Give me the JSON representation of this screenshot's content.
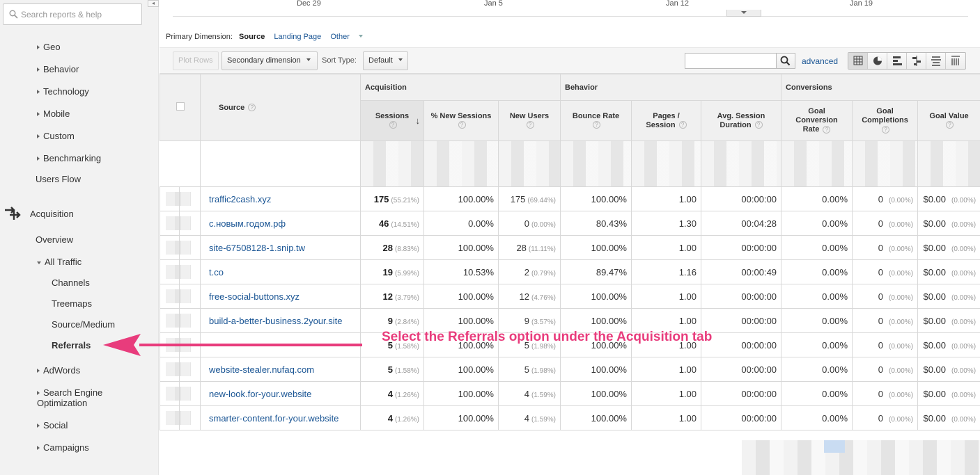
{
  "sidebar": {
    "search_placeholder": "Search reports & help",
    "audience_items": [
      "Geo",
      "Behavior",
      "Technology",
      "Mobile",
      "Custom",
      "Benchmarking"
    ],
    "users_flow": "Users Flow",
    "acquisition": "Acquisition",
    "overview": "Overview",
    "all_traffic": "All Traffic",
    "all_traffic_items": [
      "Channels",
      "Treemaps",
      "Source/Medium",
      "Referrals"
    ],
    "selected_item": "Referrals",
    "other_items": [
      "AdWords",
      "Search Engine Optimization",
      "Social",
      "Campaigns"
    ]
  },
  "timeline": {
    "labels": [
      "Dec 29",
      "Jan 5",
      "Jan 12",
      "Jan 19"
    ]
  },
  "primary_dimension": {
    "label": "Primary Dimension:",
    "active": "Source",
    "landing_page": "Landing Page",
    "other": "Other"
  },
  "toolbar": {
    "plot_rows": "Plot Rows",
    "secondary_dimension": "Secondary dimension",
    "sort_type_label": "Sort Type:",
    "sort_type_value": "Default",
    "advanced": "advanced",
    "view_icons": [
      "grid-view-icon",
      "pie-view-icon",
      "bar-view-icon",
      "compare-view-icon",
      "term-cloud-view-icon",
      "pivot-view-icon"
    ]
  },
  "table": {
    "source_header": "Source",
    "groups": {
      "acquisition": "Acquisition",
      "behavior": "Behavior",
      "conversions": "Conversions"
    },
    "columns": {
      "sessions": "Sessions",
      "new_sessions": "% New Sessions",
      "new_users": "New Users",
      "bounce_rate": "Bounce Rate",
      "pages_session_1": "Pages /",
      "pages_session_2": "Session",
      "avg_session_1": "Avg. Session",
      "avg_session_2": "Duration",
      "goal_conv_1": "Goal",
      "goal_conv_2": "Conversion",
      "goal_conv_3": "Rate",
      "goal_comp_1": "Goal",
      "goal_comp_2": "Completions",
      "goal_value": "Goal Value"
    },
    "help_glyph": "?",
    "rows": [
      {
        "source": "traffic2cash.xyz",
        "sessions": "175",
        "sessions_pct": "(55.21%)",
        "new_sessions": "100.00%",
        "new_users": "175",
        "new_users_pct": "(69.44%)",
        "bounce": "100.00%",
        "pages": "1.00",
        "duration": "00:00:00",
        "conv": "0.00%",
        "comp": "0",
        "comp_pct": "(0.00%)",
        "value": "$0.00",
        "value_pct": "(0.00%)"
      },
      {
        "source": "с.новым.годом.рф",
        "sessions": "46",
        "sessions_pct": "(14.51%)",
        "new_sessions": "0.00%",
        "new_users": "0",
        "new_users_pct": "(0.00%)",
        "bounce": "80.43%",
        "pages": "1.30",
        "duration": "00:04:28",
        "conv": "0.00%",
        "comp": "0",
        "comp_pct": "(0.00%)",
        "value": "$0.00",
        "value_pct": "(0.00%)"
      },
      {
        "source": "site-67508128-1.snip.tw",
        "sessions": "28",
        "sessions_pct": "(8.83%)",
        "new_sessions": "100.00%",
        "new_users": "28",
        "new_users_pct": "(11.11%)",
        "bounce": "100.00%",
        "pages": "1.00",
        "duration": "00:00:00",
        "conv": "0.00%",
        "comp": "0",
        "comp_pct": "(0.00%)",
        "value": "$0.00",
        "value_pct": "(0.00%)"
      },
      {
        "source": "t.co",
        "sessions": "19",
        "sessions_pct": "(5.99%)",
        "new_sessions": "10.53%",
        "new_users": "2",
        "new_users_pct": "(0.79%)",
        "bounce": "89.47%",
        "pages": "1.16",
        "duration": "00:00:49",
        "conv": "0.00%",
        "comp": "0",
        "comp_pct": "(0.00%)",
        "value": "$0.00",
        "value_pct": "(0.00%)"
      },
      {
        "source": "free-social-buttons.xyz",
        "sessions": "12",
        "sessions_pct": "(3.79%)",
        "new_sessions": "100.00%",
        "new_users": "12",
        "new_users_pct": "(4.76%)",
        "bounce": "100.00%",
        "pages": "1.00",
        "duration": "00:00:00",
        "conv": "0.00%",
        "comp": "0",
        "comp_pct": "(0.00%)",
        "value": "$0.00",
        "value_pct": "(0.00%)"
      },
      {
        "source": "build-a-better-business.2your.site",
        "sessions": "9",
        "sessions_pct": "(2.84%)",
        "new_sessions": "100.00%",
        "new_users": "9",
        "new_users_pct": "(3.57%)",
        "bounce": "100.00%",
        "pages": "1.00",
        "duration": "00:00:00",
        "conv": "0.00%",
        "comp": "0",
        "comp_pct": "(0.00%)",
        "value": "$0.00",
        "value_pct": "(0.00%)"
      },
      {
        "source": "",
        "sessions": "5",
        "sessions_pct": "(1.58%)",
        "new_sessions": "100.00%",
        "new_users": "5",
        "new_users_pct": "(1.98%)",
        "bounce": "100.00%",
        "pages": "1.00",
        "duration": "00:00:00",
        "conv": "0.00%",
        "comp": "0",
        "comp_pct": "(0.00%)",
        "value": "$0.00",
        "value_pct": "(0.00%)"
      },
      {
        "source": "website-stealer.nufaq.com",
        "sessions": "5",
        "sessions_pct": "(1.58%)",
        "new_sessions": "100.00%",
        "new_users": "5",
        "new_users_pct": "(1.98%)",
        "bounce": "100.00%",
        "pages": "1.00",
        "duration": "00:00:00",
        "conv": "0.00%",
        "comp": "0",
        "comp_pct": "(0.00%)",
        "value": "$0.00",
        "value_pct": "(0.00%)"
      },
      {
        "source": "new-look.for-your.website",
        "sessions": "4",
        "sessions_pct": "(1.26%)",
        "new_sessions": "100.00%",
        "new_users": "4",
        "new_users_pct": "(1.59%)",
        "bounce": "100.00%",
        "pages": "1.00",
        "duration": "00:00:00",
        "conv": "0.00%",
        "comp": "0",
        "comp_pct": "(0.00%)",
        "value": "$0.00",
        "value_pct": "(0.00%)"
      },
      {
        "source": "smarter-content.for-your.website",
        "sessions": "4",
        "sessions_pct": "(1.26%)",
        "new_sessions": "100.00%",
        "new_users": "4",
        "new_users_pct": "(1.59%)",
        "bounce": "100.00%",
        "pages": "1.00",
        "duration": "00:00:00",
        "conv": "0.00%",
        "comp": "0",
        "comp_pct": "(0.00%)",
        "value": "$0.00",
        "value_pct": "(0.00%)"
      }
    ]
  },
  "annotation": {
    "text": "Select the Referrals option under the Acquisition tab",
    "color": "#e83c7c"
  },
  "colors": {
    "link": "#1a5594",
    "sidebar_bg": "#f2f2f2",
    "header_bg": "#f0f0f0"
  }
}
